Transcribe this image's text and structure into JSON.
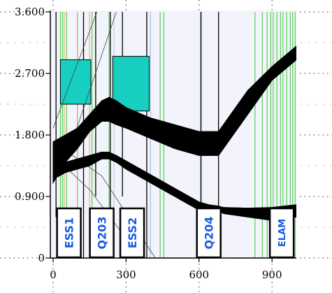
{
  "chart_data": {
    "type": "line",
    "title": "",
    "xlabel": "",
    "ylabel": "",
    "xlim": [
      0,
      1000
    ],
    "ylim": [
      0,
      3.6
    ],
    "x_ticks": [
      0,
      300,
      600,
      900
    ],
    "x_tick_labels": [
      "0",
      "300",
      "600",
      "900"
    ],
    "y_ticks": [
      0,
      0.9,
      1.8,
      2.7,
      3.6
    ],
    "y_tick_labels": [
      "0",
      "0.900",
      "1.800",
      "2.700",
      "3.600"
    ],
    "grid": "dotted",
    "colors": {
      "trace": "#000000",
      "element_fill": "#17cfc0",
      "label_text": "#1a5adf",
      "vertical_lines": "#22c41a",
      "background": "#f2f3fb"
    },
    "series": [
      {
        "x": [
          0,
          50,
          100,
          150,
          200,
          230,
          260,
          300,
          400,
          500,
          600,
          640,
          680,
          700,
          800,
          900,
          1000
        ],
        "lower": [
          1.1,
          1.4,
          1.6,
          1.85,
          2.0,
          2.0,
          1.95,
          1.9,
          1.75,
          1.6,
          1.5,
          1.5,
          1.5,
          1.6,
          2.1,
          2.6,
          2.9
        ],
        "upper": [
          1.7,
          1.8,
          1.9,
          2.1,
          2.3,
          2.35,
          2.3,
          2.2,
          2.05,
          1.95,
          1.85,
          1.85,
          1.85,
          1.95,
          2.45,
          2.8,
          3.1
        ]
      },
      {
        "x": [
          0,
          50,
          100,
          150,
          200,
          230,
          260,
          300,
          400,
          500,
          600,
          640,
          680,
          700,
          800,
          900,
          1000
        ],
        "lower": [
          1.15,
          1.25,
          1.3,
          1.35,
          1.45,
          1.45,
          1.4,
          1.3,
          1.1,
          0.9,
          0.7,
          0.7,
          0.7,
          0.65,
          0.6,
          0.55,
          0.6
        ],
        "upper": [
          1.3,
          1.4,
          1.45,
          1.5,
          1.55,
          1.55,
          1.5,
          1.42,
          1.22,
          1.02,
          0.82,
          0.78,
          0.76,
          0.74,
          0.73,
          0.74,
          0.78
        ]
      }
    ],
    "elements": [
      {
        "label": "ESS1",
        "x_center": 65
      },
      {
        "label": "Q203",
        "x_center": 200
      },
      {
        "label": "ESS2",
        "x_center": 325
      },
      {
        "label": "Q204",
        "x_center": 640
      },
      {
        "label": "ELAM",
        "x_center": 940
      }
    ],
    "shaded_boxes": [
      {
        "x": [
          30,
          155
        ],
        "y": [
          2.25,
          2.9
        ]
      },
      {
        "x": [
          245,
          395
        ],
        "y": [
          2.15,
          2.95
        ]
      }
    ]
  }
}
